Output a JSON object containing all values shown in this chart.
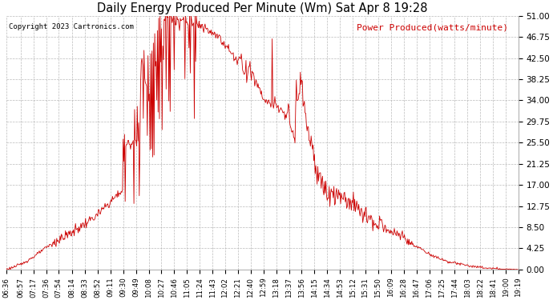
{
  "title": "Daily Energy Produced Per Minute (Wm) Sat Apr 8 19:28",
  "legend_label": "Power Produced(watts/minute)",
  "copyright": "Copyright 2023 Cartronics.com",
  "bg_color": "#ffffff",
  "line_color": "#cc0000",
  "grid_color": "#aaaaaa",
  "yticks": [
    0.0,
    4.25,
    8.5,
    12.75,
    17.0,
    21.25,
    25.5,
    29.75,
    34.0,
    38.25,
    42.5,
    46.75,
    51.0
  ],
  "ylim": [
    0,
    51
  ],
  "xtick_labels": [
    "06:36",
    "06:57",
    "07:17",
    "07:36",
    "07:54",
    "08:14",
    "08:33",
    "08:52",
    "09:11",
    "09:30",
    "09:49",
    "10:08",
    "10:27",
    "10:46",
    "11:05",
    "11:24",
    "11:43",
    "12:02",
    "12:21",
    "12:40",
    "12:59",
    "13:18",
    "13:37",
    "13:56",
    "14:15",
    "14:34",
    "14:53",
    "15:12",
    "15:31",
    "15:50",
    "16:09",
    "16:28",
    "16:47",
    "17:06",
    "17:25",
    "17:44",
    "18:03",
    "18:22",
    "18:41",
    "19:00",
    "19:19"
  ],
  "key_points": [
    [
      0,
      0.0
    ],
    [
      21,
      1.0
    ],
    [
      40,
      2.5
    ],
    [
      60,
      4.5
    ],
    [
      78,
      6.0
    ],
    [
      98,
      7.5
    ],
    [
      115,
      9.0
    ],
    [
      136,
      11.0
    ],
    [
      154,
      13.5
    ],
    [
      173,
      16.0
    ],
    [
      174,
      26.0
    ],
    [
      175,
      21.0
    ],
    [
      176,
      27.0
    ],
    [
      177,
      14.0
    ],
    [
      178,
      25.0
    ],
    [
      193,
      26.0
    ],
    [
      194,
      37.5
    ],
    [
      195,
      28.0
    ],
    [
      196,
      37.0
    ],
    [
      197,
      24.0
    ],
    [
      198,
      15.0
    ],
    [
      199,
      26.0
    ],
    [
      200,
      37.0
    ],
    [
      201,
      42.0
    ],
    [
      210,
      36.0
    ],
    [
      211,
      38.0
    ],
    [
      212,
      34.0
    ],
    [
      213,
      36.0
    ],
    [
      218,
      37.5
    ],
    [
      220,
      39.0
    ],
    [
      225,
      44.0
    ],
    [
      229,
      46.0
    ],
    [
      230,
      42.5
    ],
    [
      231,
      48.0
    ],
    [
      232,
      38.0
    ],
    [
      234,
      42.0
    ],
    [
      235,
      50.5
    ],
    [
      236,
      49.5
    ],
    [
      237,
      51.0
    ],
    [
      240,
      50.5
    ],
    [
      243,
      51.0
    ],
    [
      245,
      50.0
    ],
    [
      248,
      51.0
    ],
    [
      250,
      50.5
    ],
    [
      252,
      49.5
    ],
    [
      254,
      50.5
    ],
    [
      256,
      50.0
    ],
    [
      258,
      48.0
    ],
    [
      260,
      50.0
    ],
    [
      263,
      50.5
    ],
    [
      265,
      50.0
    ],
    [
      268,
      49.0
    ],
    [
      270,
      50.0
    ],
    [
      272,
      49.5
    ],
    [
      274,
      50.0
    ],
    [
      276,
      49.5
    ],
    [
      280,
      50.0
    ],
    [
      285,
      49.5
    ],
    [
      290,
      49.0
    ],
    [
      295,
      48.5
    ],
    [
      300,
      48.0
    ],
    [
      305,
      47.5
    ],
    [
      312,
      47.0
    ],
    [
      315,
      46.5
    ],
    [
      317,
      47.5
    ],
    [
      320,
      46.0
    ],
    [
      325,
      45.5
    ],
    [
      330,
      44.5
    ],
    [
      335,
      43.5
    ],
    [
      340,
      42.5
    ],
    [
      345,
      42.0
    ],
    [
      348,
      43.0
    ],
    [
      349,
      41.5
    ],
    [
      350,
      43.5
    ],
    [
      352,
      40.5
    ],
    [
      355,
      39.5
    ],
    [
      357,
      41.0
    ],
    [
      358,
      38.5
    ],
    [
      360,
      40.0
    ],
    [
      363,
      41.5
    ],
    [
      365,
      38.0
    ],
    [
      367,
      40.0
    ],
    [
      370,
      38.0
    ],
    [
      375,
      37.0
    ],
    [
      380,
      35.5
    ],
    [
      385,
      34.0
    ],
    [
      390,
      33.5
    ],
    [
      395,
      33.5
    ],
    [
      396,
      46.5
    ],
    [
      397,
      33.0
    ],
    [
      398,
      32.5
    ],
    [
      400,
      34.0
    ],
    [
      405,
      32.5
    ],
    [
      410,
      32.0
    ],
    [
      415,
      31.0
    ],
    [
      417,
      30.5
    ],
    [
      420,
      34.0
    ],
    [
      422,
      30.0
    ],
    [
      425,
      28.0
    ],
    [
      430,
      26.0
    ],
    [
      432,
      38.0
    ],
    [
      433,
      34.5
    ],
    [
      434,
      34.0
    ],
    [
      435,
      33.0
    ],
    [
      436,
      34.0
    ],
    [
      437,
      36.0
    ],
    [
      438,
      38.5
    ],
    [
      439,
      38.0
    ],
    [
      440,
      37.0
    ],
    [
      441,
      37.5
    ],
    [
      442,
      34.0
    ],
    [
      443,
      32.5
    ],
    [
      455,
      24.0
    ],
    [
      475,
      15.0
    ],
    [
      476,
      17.0
    ],
    [
      477,
      15.5
    ],
    [
      480,
      16.0
    ],
    [
      482,
      15.5
    ],
    [
      485,
      14.5
    ],
    [
      487,
      15.5
    ],
    [
      490,
      14.5
    ],
    [
      492,
      15.5
    ],
    [
      495,
      15.0
    ],
    [
      500,
      13.5
    ],
    [
      505,
      14.5
    ],
    [
      510,
      13.0
    ],
    [
      515,
      14.0
    ],
    [
      520,
      13.5
    ],
    [
      525,
      12.5
    ],
    [
      530,
      11.5
    ],
    [
      535,
      11.0
    ],
    [
      540,
      10.5
    ],
    [
      545,
      10.0
    ],
    [
      550,
      9.5
    ],
    [
      555,
      8.5
    ],
    [
      560,
      8.5
    ],
    [
      565,
      8.0
    ],
    [
      570,
      7.5
    ],
    [
      575,
      7.0
    ],
    [
      580,
      7.5
    ],
    [
      585,
      7.0
    ],
    [
      590,
      6.5
    ],
    [
      595,
      6.0
    ],
    [
      600,
      5.5
    ],
    [
      605,
      5.0
    ],
    [
      610,
      4.5
    ],
    [
      615,
      4.5
    ],
    [
      620,
      4.0
    ],
    [
      625,
      3.5
    ],
    [
      640,
      2.5
    ],
    [
      660,
      1.5
    ],
    [
      680,
      1.0
    ],
    [
      700,
      0.5
    ],
    [
      720,
      0.3
    ],
    [
      740,
      0.2
    ],
    [
      763,
      0.1
    ]
  ]
}
